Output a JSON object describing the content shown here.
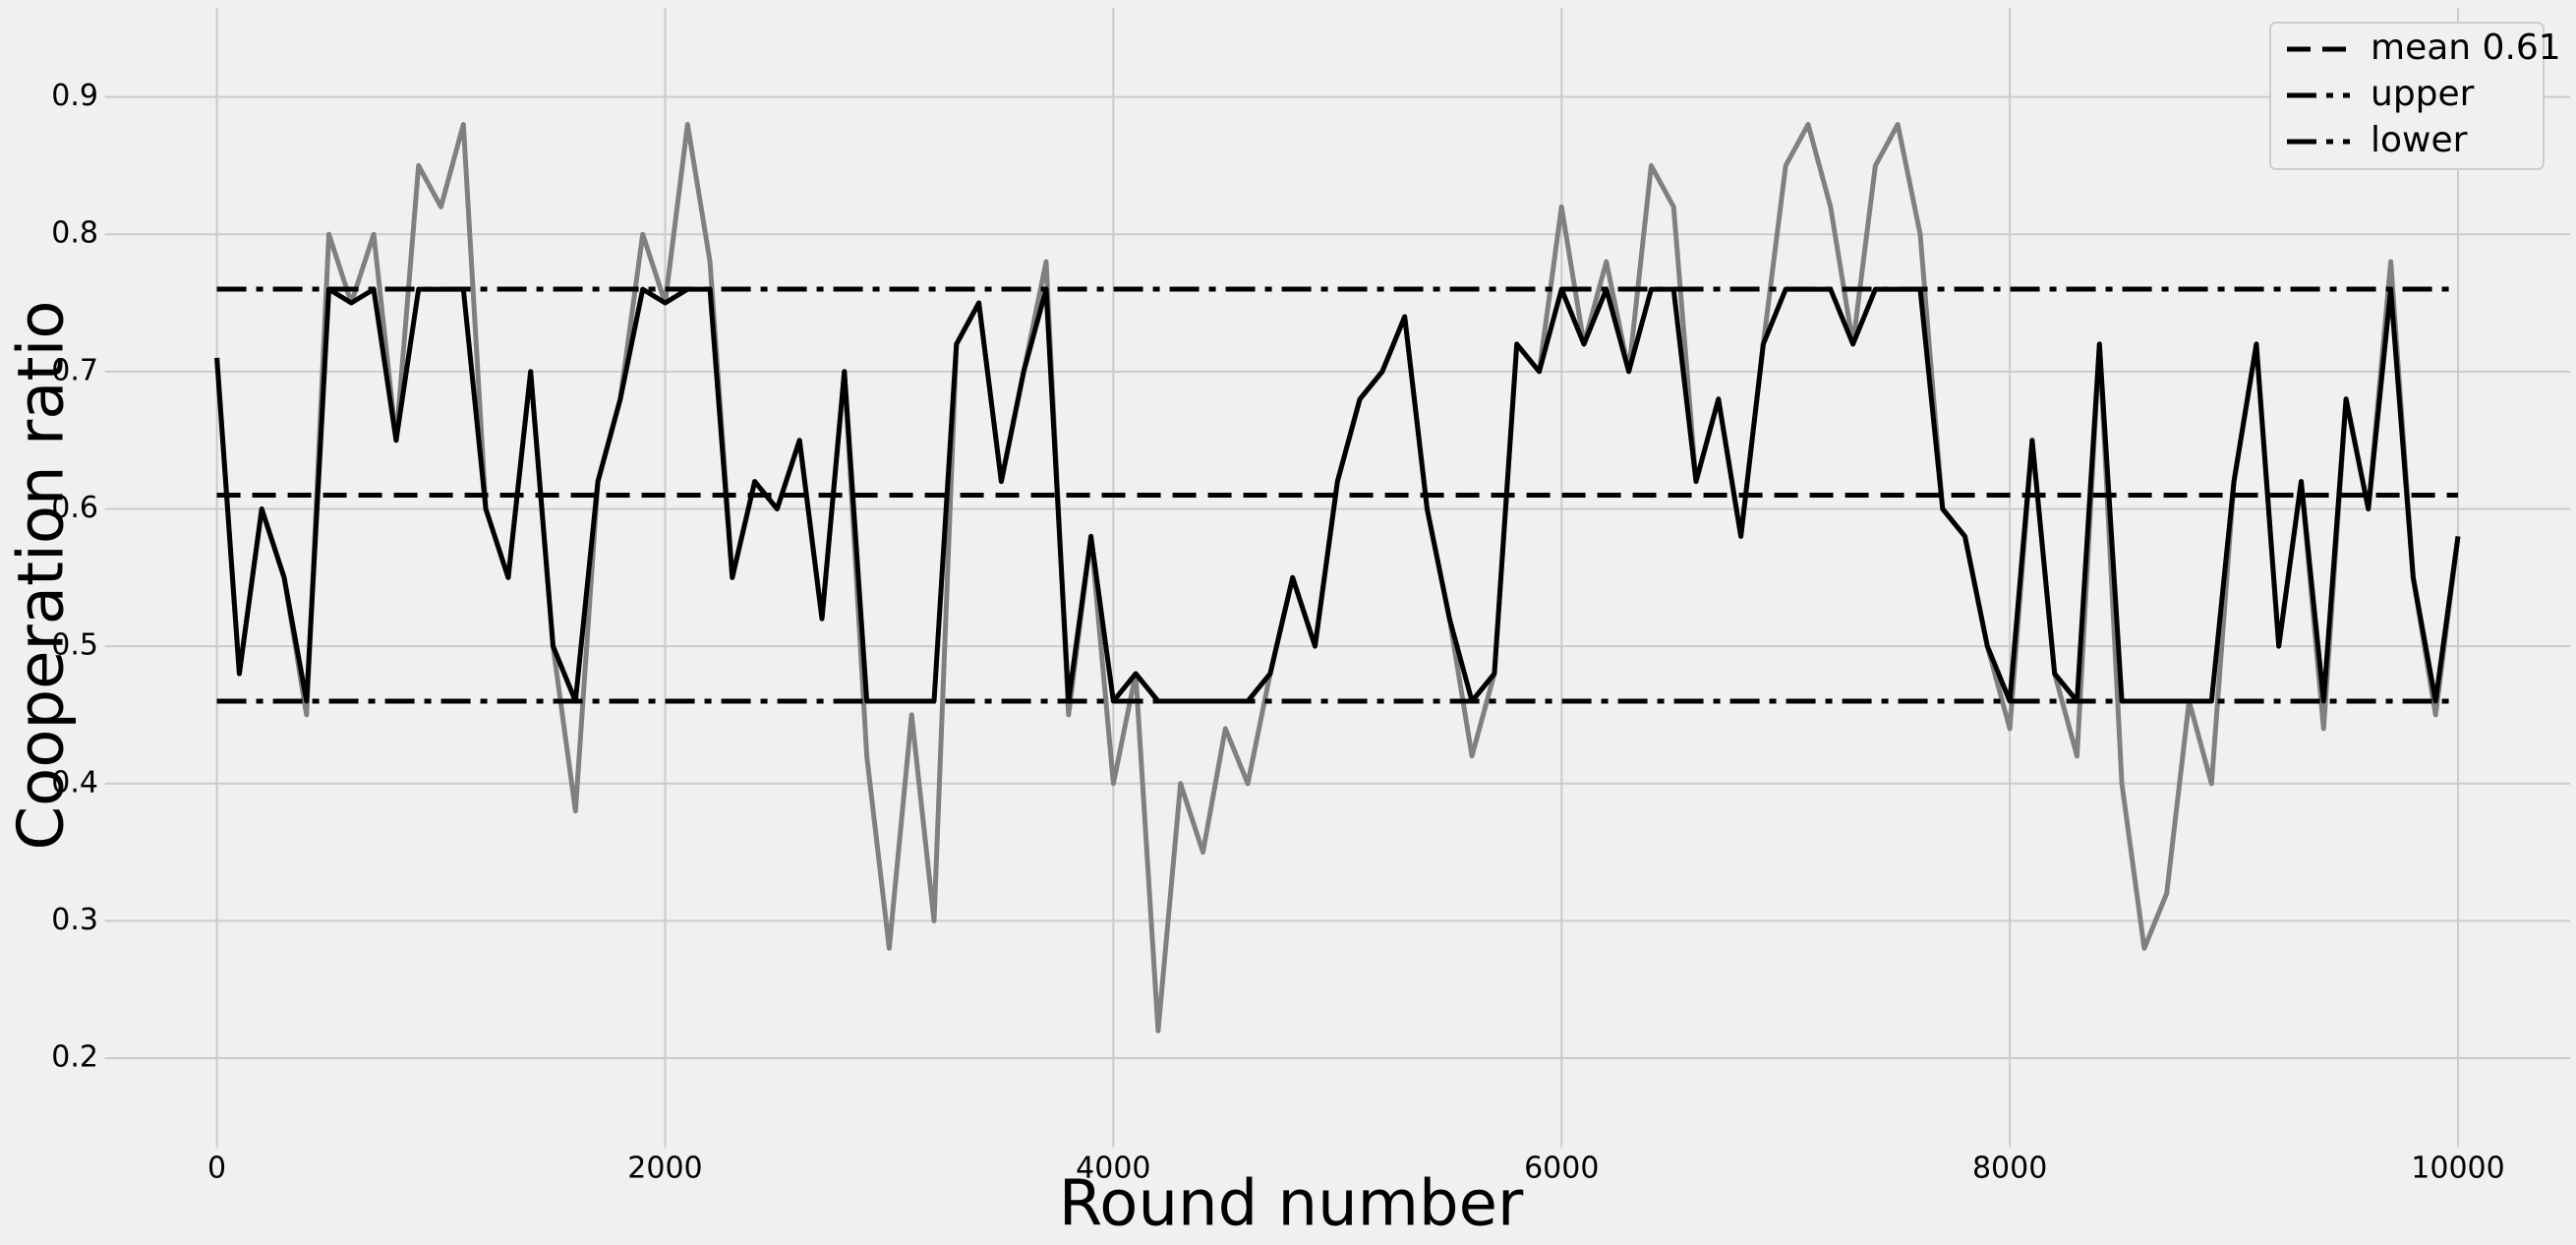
{
  "chart_data": {
    "type": "line",
    "xlabel": "Round number",
    "ylabel": "Cooperation ratio",
    "x": [
      0,
      100,
      200,
      300,
      400,
      500,
      600,
      700,
      800,
      900,
      1000,
      1100,
      1200,
      1300,
      1400,
      1500,
      1600,
      1700,
      1800,
      1900,
      2000,
      2100,
      2200,
      2300,
      2400,
      2500,
      2600,
      2700,
      2800,
      2900,
      3000,
      3100,
      3200,
      3300,
      3400,
      3500,
      3600,
      3700,
      3800,
      3900,
      4000,
      4100,
      4200,
      4300,
      4400,
      4500,
      4600,
      4700,
      4800,
      4900,
      5000,
      5100,
      5200,
      5300,
      5400,
      5500,
      5600,
      5700,
      5800,
      5900,
      6000,
      6100,
      6200,
      6300,
      6400,
      6500,
      6600,
      6700,
      6800,
      6900,
      7000,
      7100,
      7200,
      7300,
      7400,
      7500,
      7600,
      7700,
      7800,
      7900,
      8000,
      8100,
      8200,
      8300,
      8400,
      8500,
      8600,
      8700,
      8800,
      8900,
      9000,
      9100,
      9200,
      9300,
      9400,
      9500,
      9600,
      9700,
      9800,
      9900,
      10000
    ],
    "series": [
      {
        "color": "#808080",
        "values": [
          0.71,
          0.48,
          0.6,
          0.55,
          0.45,
          0.8,
          0.75,
          0.8,
          0.65,
          0.85,
          0.82,
          0.88,
          0.6,
          0.55,
          0.7,
          0.5,
          0.38,
          0.62,
          0.68,
          0.8,
          0.75,
          0.88,
          0.78,
          0.55,
          0.62,
          0.6,
          0.65,
          0.52,
          0.7,
          0.42,
          0.28,
          0.45,
          0.3,
          0.72,
          0.75,
          0.62,
          0.7,
          0.78,
          0.45,
          0.58,
          0.4,
          0.48,
          0.22,
          0.4,
          0.35,
          0.44,
          0.4,
          0.48,
          0.55,
          0.5,
          0.62,
          0.68,
          0.7,
          0.74,
          0.6,
          0.52,
          0.42,
          0.48,
          0.72,
          0.7,
          0.82,
          0.72,
          0.78,
          0.7,
          0.85,
          0.82,
          0.62,
          0.68,
          0.58,
          0.72,
          0.85,
          0.88,
          0.82,
          0.72,
          0.85,
          0.88,
          0.8,
          0.6,
          0.58,
          0.5,
          0.44,
          0.65,
          0.48,
          0.42,
          0.72,
          0.4,
          0.28,
          0.32,
          0.46,
          0.4,
          0.62,
          0.72,
          0.5,
          0.62,
          0.44,
          0.68,
          0.6,
          0.78,
          0.55,
          0.45,
          0.58
        ]
      },
      {
        "color": "#000000",
        "values": [
          0.71,
          0.48,
          0.6,
          0.55,
          0.46,
          0.76,
          0.75,
          0.76,
          0.65,
          0.76,
          0.76,
          0.76,
          0.6,
          0.55,
          0.7,
          0.5,
          0.46,
          0.62,
          0.68,
          0.76,
          0.75,
          0.76,
          0.76,
          0.55,
          0.62,
          0.6,
          0.65,
          0.52,
          0.7,
          0.46,
          0.46,
          0.46,
          0.46,
          0.72,
          0.75,
          0.62,
          0.7,
          0.76,
          0.46,
          0.58,
          0.46,
          0.48,
          0.46,
          0.46,
          0.46,
          0.46,
          0.46,
          0.48,
          0.55,
          0.5,
          0.62,
          0.68,
          0.7,
          0.74,
          0.6,
          0.52,
          0.46,
          0.48,
          0.72,
          0.7,
          0.76,
          0.72,
          0.76,
          0.7,
          0.76,
          0.76,
          0.62,
          0.68,
          0.58,
          0.72,
          0.76,
          0.76,
          0.76,
          0.72,
          0.76,
          0.76,
          0.76,
          0.6,
          0.58,
          0.5,
          0.46,
          0.65,
          0.48,
          0.46,
          0.72,
          0.46,
          0.46,
          0.46,
          0.46,
          0.46,
          0.62,
          0.72,
          0.5,
          0.62,
          0.46,
          0.68,
          0.6,
          0.76,
          0.55,
          0.46,
          0.58
        ]
      }
    ],
    "reference_lines": [
      {
        "name": "mean 0.61",
        "value": 0.61,
        "style": "dashed",
        "color": "#000000"
      },
      {
        "name": "upper",
        "value": 0.76,
        "style": "dashdot",
        "color": "#000000"
      },
      {
        "name": "lower",
        "value": 0.46,
        "style": "dashdot",
        "color": "#000000"
      }
    ],
    "xlim": [
      -500,
      10500
    ],
    "ylim": [
      0.135,
      0.965
    ],
    "xticks": [
      0,
      2000,
      4000,
      6000,
      8000,
      10000
    ],
    "yticks": [
      0.2,
      0.3,
      0.4,
      0.5,
      0.6,
      0.7,
      0.8,
      0.9
    ],
    "grid": true,
    "legend": "upper right"
  }
}
